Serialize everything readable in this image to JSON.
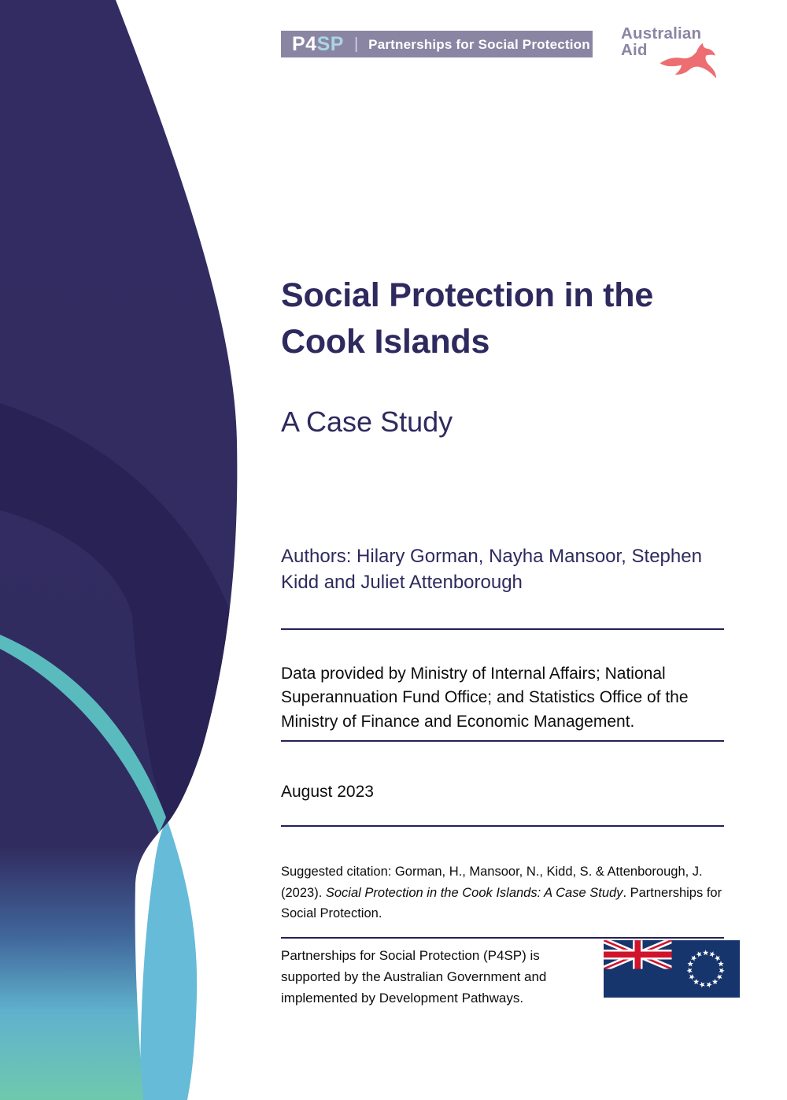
{
  "header": {
    "p4sp_logo": {
      "p4": "P4",
      "sp": "SP",
      "divider": "|",
      "label": "Partnerships for Social Protection"
    },
    "aus_aid": {
      "line1": "Australian",
      "line2": "Aid"
    }
  },
  "cover": {
    "title": "Social Protection in the Cook Islands",
    "subtitle": "A Case Study",
    "authors": "Authors: Hilary Gorman, Nayha Mansoor, Stephen Kidd and Juliet Attenborough",
    "data_note": "Data provided by Ministry of Internal Affairs; National Superannuation Fund Office; and Statistics Office of the Ministry of Finance and Economic Management.",
    "date": "August 2023",
    "citation": {
      "prefix": "Suggested citation: Gorman, H., Mansoor, N., Kidd, S. & Attenborough, J. (2023). ",
      "italic": "Social Protection in the Cook Islands: A Case Study",
      "suffix": ". Partnerships for Social Protection."
    },
    "support_note": "Partnerships for Social Protection (P4SP) is supported by the Australian Government and implemented by Development Pathways."
  },
  "colors": {
    "title_navy": "#2E2A5E",
    "deco_navy": "#322C62",
    "deco_navy_dark": "#292254",
    "deco_teal_ribbon": "#5ABBBE",
    "deco_sky_petal": "#66BBD9",
    "deco_seafoam": "#6FC9AD",
    "logo_bar": "#8B85A4",
    "logo_sp": "#A9D6E0",
    "kangaroo_red": "#ED6E72",
    "flag_blue": "#17356D",
    "flag_red": "#CF142B"
  },
  "flag": {
    "stars": 15
  }
}
